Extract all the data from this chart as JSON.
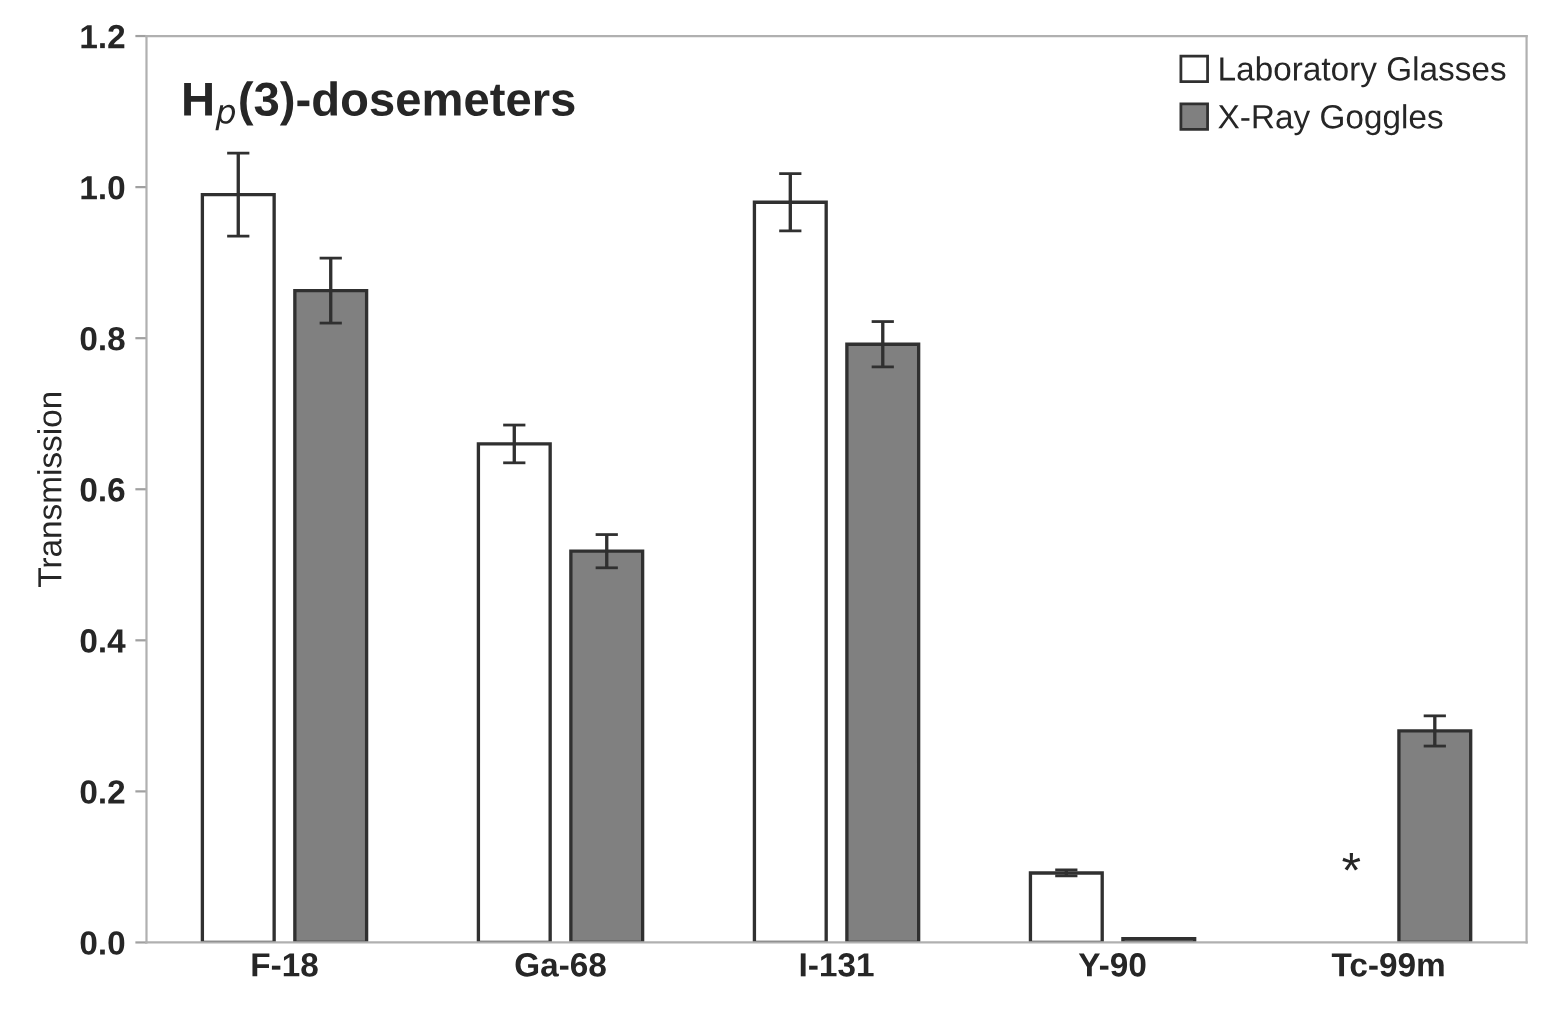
{
  "chart_data": {
    "type": "bar",
    "title": "H$_{p}$(3)-dosemeters",
    "ylabel": "Transmission",
    "categories": [
      "F-18",
      "Ga-68",
      "I-131",
      "Y-90",
      "Tc-99m"
    ],
    "series": [
      {
        "name": "Laboratory Glasses",
        "color": "#ffffff",
        "values": [
          0.99,
          0.66,
          0.98,
          0.092,
          null
        ],
        "errors": [
          0.055,
          0.025,
          0.038,
          0.004,
          null
        ]
      },
      {
        "name": "X-Ray Goggles",
        "color": "#808080",
        "values": [
          0.863,
          0.518,
          0.792,
          0.005,
          0.28
        ],
        "errors": [
          0.043,
          0.022,
          0.03,
          null,
          0.02
        ]
      }
    ],
    "annotations": [
      "*"
    ],
    "ylim": [
      0,
      1.2
    ],
    "yticks": [
      {
        "value": 0,
        "label": "0.0"
      },
      {
        "value": 0.2,
        "label": "0.2"
      },
      {
        "value": 0.4,
        "label": "0.4"
      },
      {
        "value": 0.6,
        "label": "0.6"
      },
      {
        "value": 0.8,
        "label": "0.8"
      },
      {
        "value": 1.0,
        "label": "1.0"
      },
      {
        "value": 1.2,
        "label": "1.2"
      }
    ],
    "grid": false,
    "legend": "top right"
  }
}
